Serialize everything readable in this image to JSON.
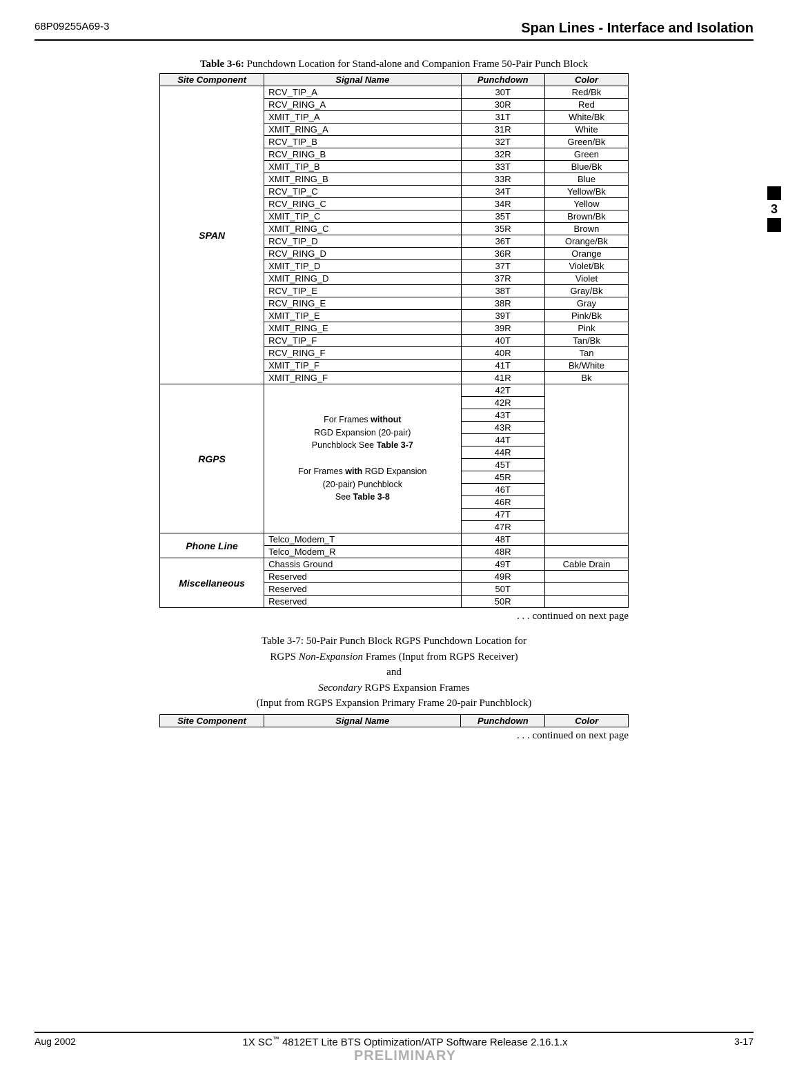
{
  "header": {
    "doc_id": "68P09255A69-3",
    "section_title": "Span Lines - Interface and Isolation"
  },
  "sidebar": {
    "chapter_num": "3"
  },
  "table36": {
    "title_label": "Table 3-6:",
    "title_text": "Punchdown Location for Stand-alone and Companion Frame 50-Pair Punch Block",
    "headers": {
      "site": "Site Component",
      "signal": "Signal Name",
      "punchdown": "Punchdown",
      "color": "Color"
    },
    "span_label": "SPAN",
    "span_rows": [
      {
        "signal": "RCV_TIP_A",
        "pd": "30T",
        "color": "Red/Bk"
      },
      {
        "signal": "RCV_RING_A",
        "pd": "30R",
        "color": "Red"
      },
      {
        "signal": "XMIT_TIP_A",
        "pd": "31T",
        "color": "White/Bk"
      },
      {
        "signal": "XMIT_RING_A",
        "pd": "31R",
        "color": "White"
      },
      {
        "signal": "RCV_TIP_B",
        "pd": "32T",
        "color": "Green/Bk"
      },
      {
        "signal": "RCV_RING_B",
        "pd": "32R",
        "color": "Green"
      },
      {
        "signal": "XMIT_TIP_B",
        "pd": "33T",
        "color": "Blue/Bk"
      },
      {
        "signal": "XMIT_RING_B",
        "pd": "33R",
        "color": "Blue"
      },
      {
        "signal": "RCV_TIP_C",
        "pd": "34T",
        "color": "Yellow/Bk"
      },
      {
        "signal": "RCV_RING_C",
        "pd": "34R",
        "color": "Yellow"
      },
      {
        "signal": "XMIT_TIP_C",
        "pd": "35T",
        "color": "Brown/Bk"
      },
      {
        "signal": "XMIT_RING_C",
        "pd": "35R",
        "color": "Brown"
      },
      {
        "signal": "RCV_TIP_D",
        "pd": "36T",
        "color": "Orange/Bk"
      },
      {
        "signal": "RCV_RING_D",
        "pd": "36R",
        "color": "Orange"
      },
      {
        "signal": "XMIT_TIP_D",
        "pd": "37T",
        "color": "Violet/Bk"
      },
      {
        "signal": "XMIT_RING_D",
        "pd": "37R",
        "color": "Violet"
      },
      {
        "signal": "RCV_TIP_E",
        "pd": "38T",
        "color": "Gray/Bk"
      },
      {
        "signal": "RCV_RING_E",
        "pd": "38R",
        "color": "Gray"
      },
      {
        "signal": "XMIT_TIP_E",
        "pd": "39T",
        "color": "Pink/Bk"
      },
      {
        "signal": "XMIT_RING_E",
        "pd": "39R",
        "color": "Pink"
      },
      {
        "signal": "RCV_TIP_F",
        "pd": "40T",
        "color": "Tan/Bk"
      },
      {
        "signal": "RCV_RING_F",
        "pd": "40R",
        "color": "Tan"
      },
      {
        "signal": "XMIT_TIP_F",
        "pd": "41T",
        "color": "Bk/White"
      },
      {
        "signal": "XMIT_RING_F",
        "pd": "41R",
        "color": "Bk"
      }
    ],
    "rgps_label": "RGPS",
    "rgps_note_html": "For Frames <b>without</b><br>RGD Expansion (20-pair)<br>Punchblock See <b>Table 3-7</b><br><br>For Frames <b>with</b> RGD Expansion<br>(20-pair) Punchblock<br>See <b>Table 3-8</b>",
    "rgps_pds": [
      "42T",
      "42R",
      "43T",
      "43R",
      "44T",
      "44R",
      "45T",
      "45R",
      "46T",
      "46R",
      "47T",
      "47R"
    ],
    "phone_label": "Phone Line",
    "phone_rows": [
      {
        "signal": "Telco_Modem_T",
        "pd": "48T",
        "color": ""
      },
      {
        "signal": "Telco_Modem_R",
        "pd": "48R",
        "color": ""
      }
    ],
    "misc_label": "Miscellaneous",
    "misc_rows": [
      {
        "signal": "Chassis Ground",
        "pd": "49T",
        "color": "Cable Drain"
      },
      {
        "signal": "Reserved",
        "pd": "49R",
        "color": ""
      },
      {
        "signal": "Reserved",
        "pd": "50T",
        "color": ""
      },
      {
        "signal": "Reserved",
        "pd": "50R",
        "color": ""
      }
    ]
  },
  "continued_text": ". . . continued on next page",
  "table37": {
    "title_label": "Table 3-7:",
    "title_html": "50-Pair Punch Block RGPS Punchdown Location for<br>RGPS <i>Non-Expansion</i> Frames (Input from RGPS Receiver)<br>and<br><i>Secondary</i> RGPS Expansion Frames<br>(Input from RGPS Expansion Primary Frame 20-pair Punchblock)",
    "headers": {
      "site": "Site Component",
      "signal": "Signal Name",
      "punchdown": "Punchdown",
      "color": "Color"
    }
  },
  "footer": {
    "date": "Aug 2002",
    "center_line": "1X SC 4812ET Lite BTS Optimization/ATP Software Release 2.16.1.x",
    "preliminary": "PRELIMINARY",
    "page": "3-17"
  }
}
